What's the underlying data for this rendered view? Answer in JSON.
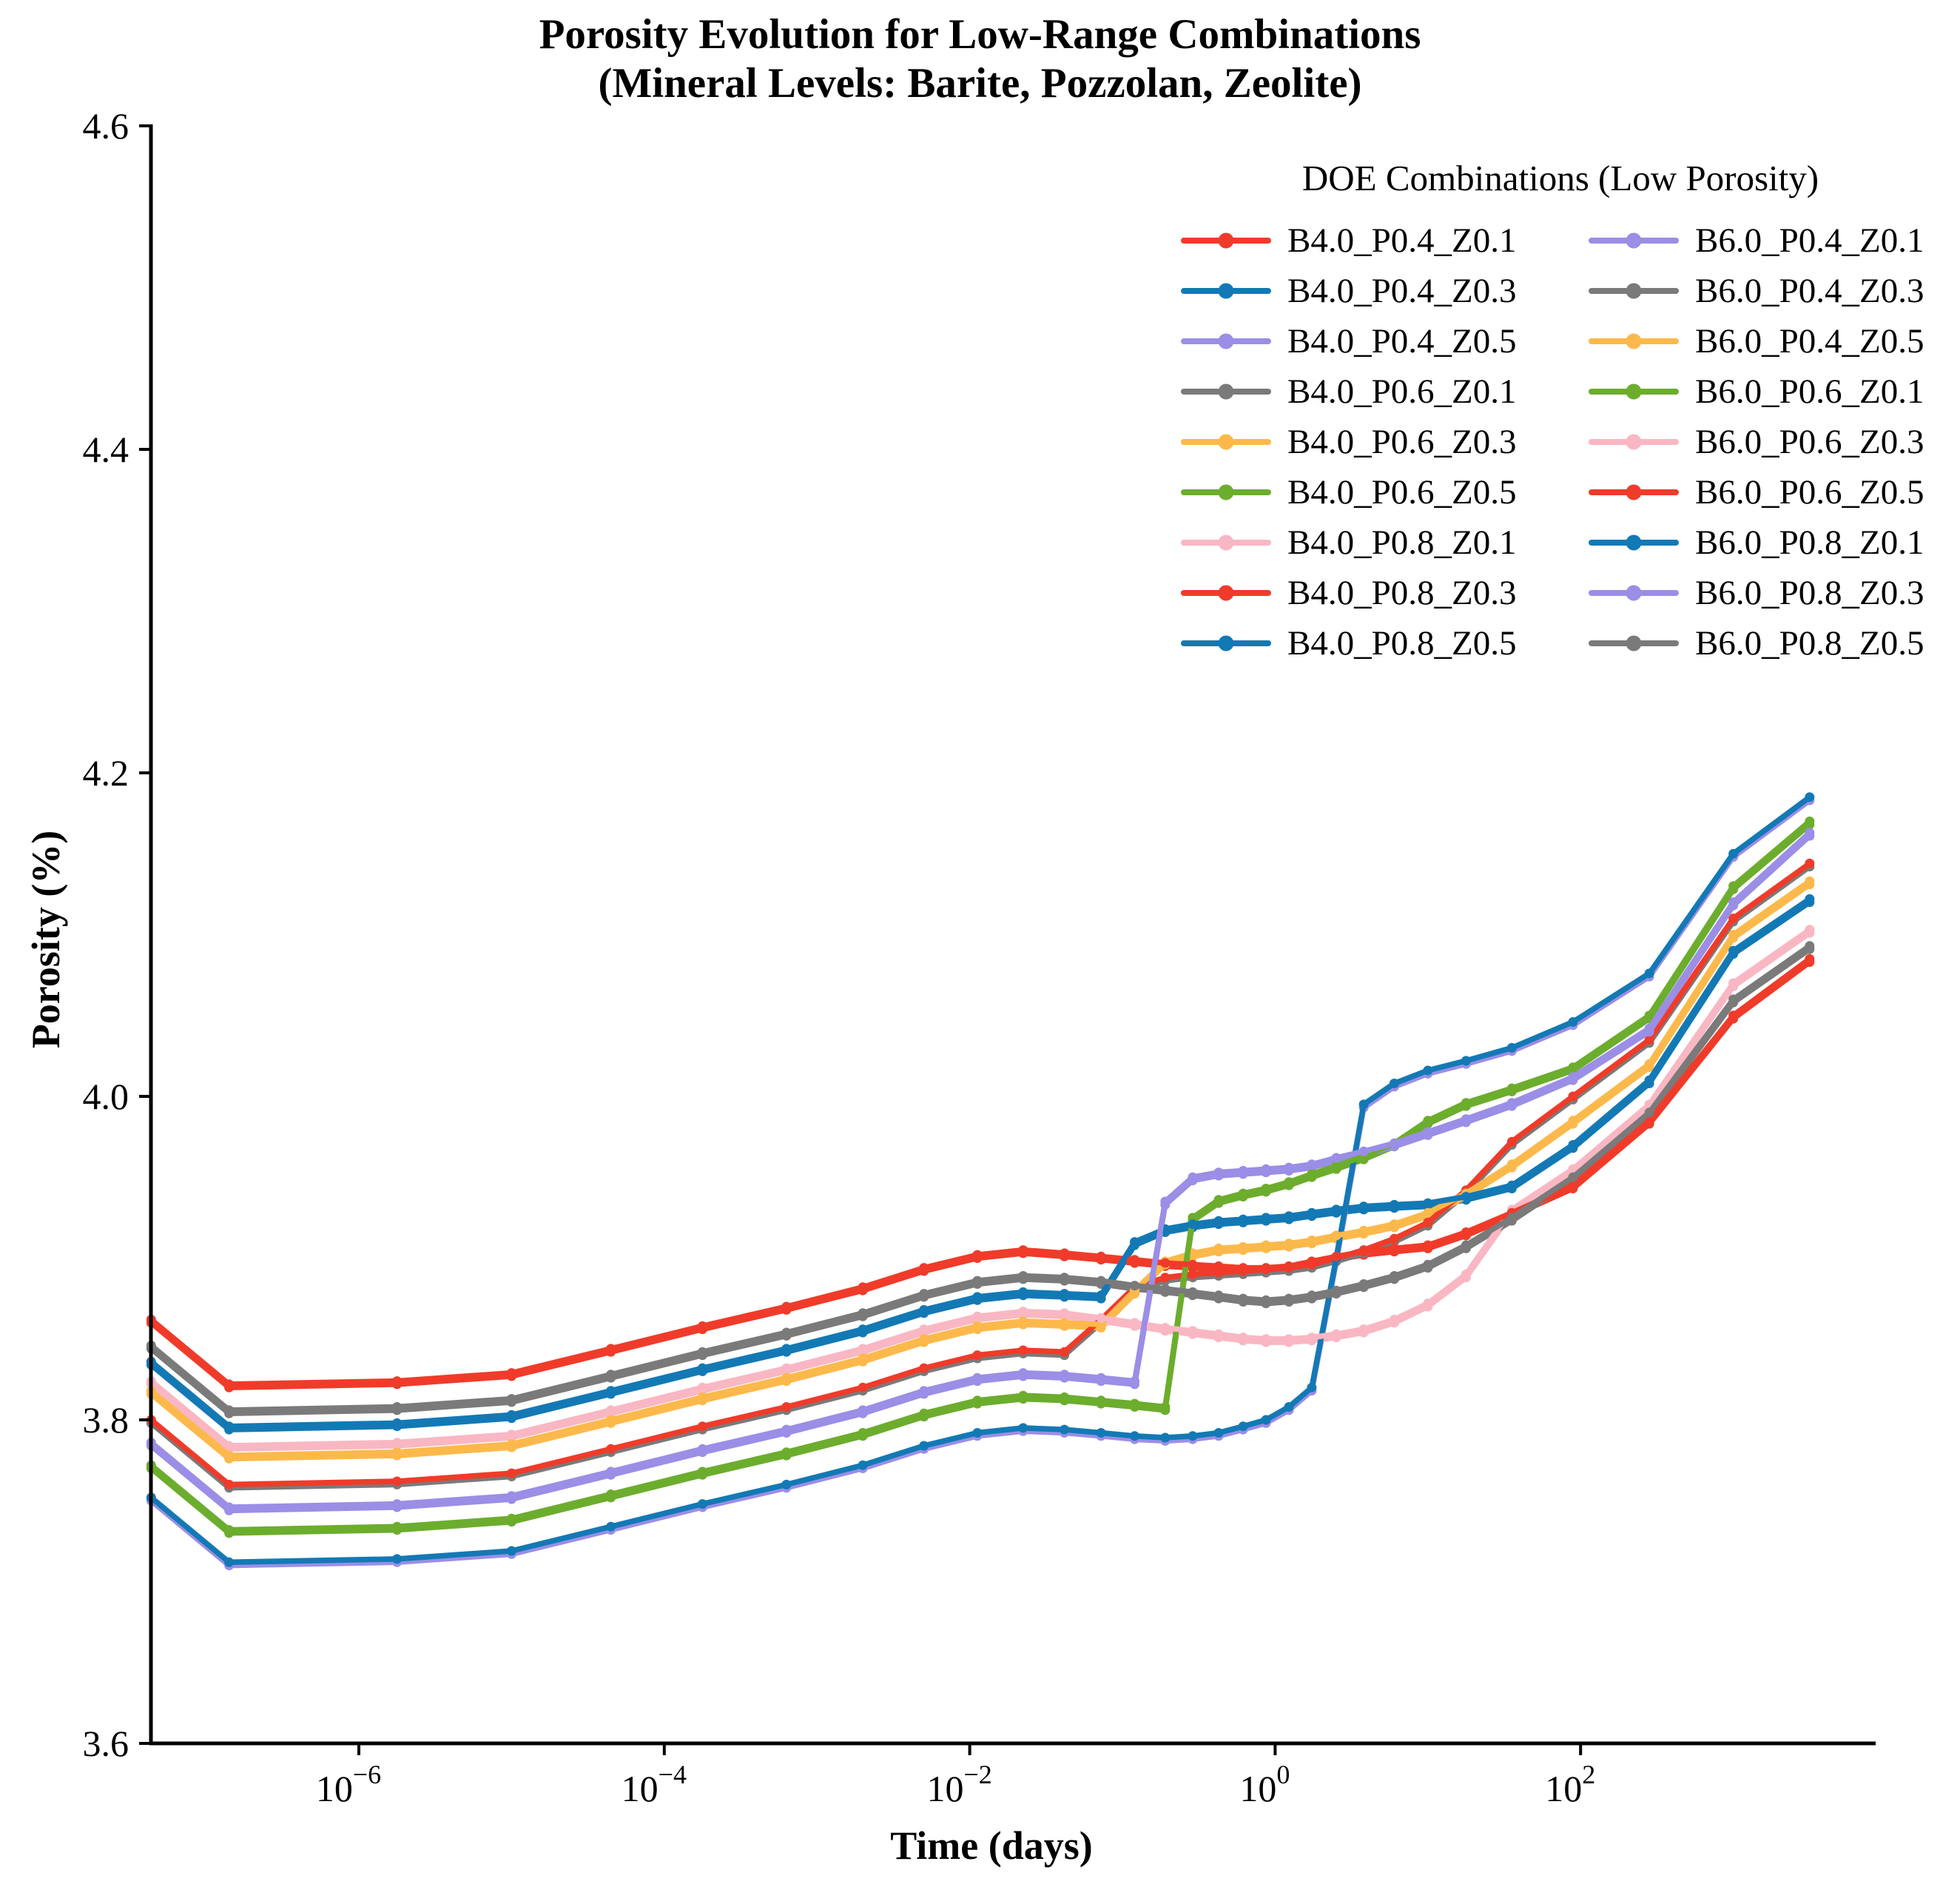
{
  "title_line1": "Porosity Evolution for Low-Range Combinations",
  "title_line2": "(Mineral Levels: Barite, Pozzolan, Zeolite)",
  "axes": {
    "x_label": "Time (days)",
    "y_label": "Porosity (%)",
    "y_tick_labels": [
      "4.6",
      "4.4",
      "4.2",
      "4.0",
      "3.8",
      "3.6"
    ],
    "y_tick_values": [
      4.6,
      4.4,
      4.2,
      4.0,
      3.8,
      3.6
    ],
    "x_tick_base": "10",
    "x_tick_exponents": [
      -6,
      -4,
      -2,
      0,
      2
    ]
  },
  "legend": {
    "title": "DOE Combinations (Low Porosity)"
  },
  "colors": {
    "red": "#f03b2a",
    "blue": "#1379b5",
    "purple": "#9a8ee6",
    "gray": "#7a7a7a",
    "orange": "#fcb94b",
    "green": "#6cad2d",
    "pink": "#f9b7c3",
    "axis": "#000000"
  },
  "chart_data": {
    "type": "line",
    "x_scale": "log",
    "grid": false,
    "legend_position": "upper right",
    "xlabel": "Time (days)",
    "ylabel": "Porosity (%)",
    "ylim": [
      3.6,
      4.6
    ],
    "xlim_log10": [
      -7.36,
      3.93
    ],
    "x_log10_days": [
      -7.36,
      -6.85,
      -5.75,
      -5.0,
      -4.35,
      -3.75,
      -3.2,
      -2.7,
      -2.3,
      -1.95,
      -1.65,
      -1.38,
      -1.14,
      -0.92,
      -0.72,
      -0.54,
      -0.37,
      -0.21,
      -0.06,
      0.09,
      0.24,
      0.4,
      0.58,
      0.78,
      1.0,
      1.25,
      1.55,
      1.95,
      2.45,
      3.0,
      3.5
    ],
    "series": [
      {
        "name": "B4.0_P0.4_Z0.1",
        "color_key": "red",
        "color": "#f03b2a",
        "values": [
          3.86,
          3.82,
          3.822,
          3.827,
          3.842,
          3.856,
          3.868,
          3.88,
          3.892,
          3.9,
          3.903,
          3.901,
          3.899,
          3.897,
          3.895,
          3.894,
          3.893,
          3.892,
          3.892,
          3.893,
          3.896,
          3.899,
          3.902,
          3.904,
          3.906,
          3.914,
          3.926,
          3.943,
          3.983,
          4.048,
          4.083
        ]
      },
      {
        "name": "B4.0_P0.4_Z0.3",
        "color_key": "blue",
        "color": "#1379b5",
        "values": [
          3.834,
          3.794,
          3.796,
          3.801,
          3.816,
          3.83,
          3.842,
          3.854,
          3.866,
          3.874,
          3.877,
          3.876,
          3.875,
          3.908,
          3.916,
          3.919,
          3.921,
          3.922,
          3.923,
          3.924,
          3.926,
          3.928,
          3.93,
          3.931,
          3.932,
          3.936,
          3.943,
          3.968,
          4.008,
          4.088,
          4.12
        ]
      },
      {
        "name": "B4.0_P0.4_Z0.5",
        "color_key": "purple",
        "color": "#9a8ee6",
        "values": [
          3.75,
          3.71,
          3.712,
          3.717,
          3.732,
          3.746,
          3.758,
          3.77,
          3.782,
          3.79,
          3.793,
          3.792,
          3.79,
          3.788,
          3.787,
          3.788,
          3.79,
          3.794,
          3.798,
          3.806,
          3.818,
          3.898,
          3.993,
          4.006,
          4.014,
          4.02,
          4.028,
          4.044,
          4.074,
          4.148,
          4.183
        ]
      },
      {
        "name": "B4.0_P0.6_Z0.1",
        "color_key": "gray",
        "color": "#7a7a7a",
        "values": [
          3.798,
          3.758,
          3.76,
          3.765,
          3.78,
          3.794,
          3.806,
          3.818,
          3.83,
          3.838,
          3.841,
          3.84,
          3.86,
          3.88,
          3.886,
          3.888,
          3.889,
          3.89,
          3.891,
          3.892,
          3.894,
          3.898,
          3.903,
          3.91,
          3.92,
          3.94,
          3.97,
          3.998,
          4.033,
          4.108,
          4.142
        ]
      },
      {
        "name": "B4.0_P0.6_Z0.3",
        "color_key": "orange",
        "color": "#fcb94b",
        "values": [
          3.816,
          3.776,
          3.778,
          3.783,
          3.798,
          3.812,
          3.824,
          3.836,
          3.848,
          3.856,
          3.859,
          3.858,
          3.857,
          3.878,
          3.896,
          3.901,
          3.904,
          3.905,
          3.906,
          3.907,
          3.909,
          3.912,
          3.915,
          3.919,
          3.926,
          3.938,
          3.956,
          3.983,
          4.018,
          4.098,
          4.131
        ]
      },
      {
        "name": "B4.0_P0.6_Z0.5",
        "color_key": "green",
        "color": "#6cad2d",
        "values": [
          3.77,
          3.73,
          3.732,
          3.737,
          3.752,
          3.766,
          3.778,
          3.79,
          3.802,
          3.81,
          3.813,
          3.812,
          3.81,
          3.808,
          3.806,
          3.923,
          3.934,
          3.938,
          3.941,
          3.945,
          3.95,
          3.955,
          3.961,
          3.969,
          3.983,
          3.994,
          4.003,
          4.016,
          4.048,
          4.128,
          4.168
        ]
      },
      {
        "name": "B4.0_P0.8_Z0.1",
        "color_key": "pink",
        "color": "#f9b7c3",
        "values": [
          3.822,
          3.782,
          3.784,
          3.789,
          3.804,
          3.818,
          3.83,
          3.842,
          3.854,
          3.862,
          3.865,
          3.864,
          3.861,
          3.858,
          3.855,
          3.853,
          3.851,
          3.849,
          3.848,
          3.848,
          3.849,
          3.851,
          3.854,
          3.86,
          3.87,
          3.888,
          3.928,
          3.953,
          3.993,
          4.068,
          4.101
        ]
      },
      {
        "name": "B4.0_P0.8_Z0.3",
        "color_key": "red",
        "color": "#f03b2a",
        "values": [
          3.8,
          3.76,
          3.762,
          3.767,
          3.782,
          3.796,
          3.808,
          3.82,
          3.832,
          3.84,
          3.843,
          3.842,
          3.862,
          3.882,
          3.888,
          3.89,
          3.891,
          3.892,
          3.893,
          3.894,
          3.896,
          3.9,
          3.905,
          3.912,
          3.922,
          3.942,
          3.972,
          4.0,
          4.035,
          4.11,
          4.144
        ]
      },
      {
        "name": "B4.0_P0.8_Z0.5",
        "color_key": "blue",
        "color": "#1379b5",
        "values": [
          3.752,
          3.712,
          3.714,
          3.719,
          3.734,
          3.748,
          3.76,
          3.772,
          3.784,
          3.792,
          3.795,
          3.794,
          3.792,
          3.79,
          3.789,
          3.79,
          3.792,
          3.796,
          3.8,
          3.808,
          3.82,
          3.9,
          3.995,
          4.008,
          4.016,
          4.022,
          4.03,
          4.046,
          4.076,
          4.15,
          4.185
        ]
      },
      {
        "name": "B6.0_P0.4_Z0.1",
        "color_key": "purple",
        "color": "#9a8ee6",
        "values": [
          3.784,
          3.744,
          3.746,
          3.751,
          3.766,
          3.78,
          3.792,
          3.804,
          3.816,
          3.824,
          3.827,
          3.826,
          3.824,
          3.822,
          3.933,
          3.948,
          3.951,
          3.952,
          3.953,
          3.954,
          3.956,
          3.96,
          3.964,
          3.969,
          3.976,
          3.984,
          3.994,
          4.01,
          4.04,
          4.118,
          4.161
        ]
      },
      {
        "name": "B6.0_P0.4_Z0.3",
        "color_key": "gray",
        "color": "#7a7a7a",
        "values": [
          3.844,
          3.804,
          3.806,
          3.811,
          3.826,
          3.84,
          3.852,
          3.864,
          3.876,
          3.884,
          3.887,
          3.886,
          3.884,
          3.881,
          3.879,
          3.877,
          3.875,
          3.873,
          3.872,
          3.873,
          3.875,
          3.878,
          3.882,
          3.887,
          3.894,
          3.906,
          3.923,
          3.948,
          3.988,
          4.058,
          4.091
        ]
      },
      {
        "name": "B6.0_P0.4_Z0.5",
        "color_key": "orange",
        "color": "#fcb94b",
        "values": [
          3.818,
          3.778,
          3.78,
          3.785,
          3.8,
          3.814,
          3.826,
          3.838,
          3.85,
          3.858,
          3.861,
          3.86,
          3.859,
          3.88,
          3.898,
          3.903,
          3.906,
          3.907,
          3.908,
          3.909,
          3.911,
          3.914,
          3.917,
          3.921,
          3.928,
          3.94,
          3.958,
          3.985,
          4.02,
          4.1,
          4.133
        ]
      },
      {
        "name": "B6.0_P0.6_Z0.1",
        "color_key": "green",
        "color": "#6cad2d",
        "values": [
          3.772,
          3.732,
          3.734,
          3.739,
          3.754,
          3.768,
          3.78,
          3.792,
          3.804,
          3.812,
          3.815,
          3.814,
          3.812,
          3.81,
          3.808,
          3.925,
          3.936,
          3.94,
          3.943,
          3.947,
          3.952,
          3.957,
          3.963,
          3.971,
          3.985,
          3.996,
          4.005,
          4.018,
          4.05,
          4.13,
          4.17
        ]
      },
      {
        "name": "B6.0_P0.6_Z0.3",
        "color_key": "pink",
        "color": "#f9b7c3",
        "values": [
          3.824,
          3.784,
          3.786,
          3.791,
          3.806,
          3.82,
          3.832,
          3.844,
          3.856,
          3.864,
          3.867,
          3.866,
          3.863,
          3.86,
          3.857,
          3.855,
          3.853,
          3.851,
          3.85,
          3.85,
          3.851,
          3.853,
          3.856,
          3.862,
          3.872,
          3.89,
          3.93,
          3.955,
          3.995,
          4.07,
          4.103
        ]
      },
      {
        "name": "B6.0_P0.6_Z0.5",
        "color_key": "red",
        "color": "#f03b2a",
        "values": [
          3.862,
          3.822,
          3.824,
          3.829,
          3.844,
          3.858,
          3.87,
          3.882,
          3.894,
          3.902,
          3.905,
          3.903,
          3.901,
          3.899,
          3.897,
          3.896,
          3.895,
          3.894,
          3.894,
          3.895,
          3.898,
          3.901,
          3.904,
          3.906,
          3.908,
          3.916,
          3.928,
          3.945,
          3.985,
          4.05,
          4.085
        ]
      },
      {
        "name": "B6.0_P0.8_Z0.1",
        "color_key": "blue",
        "color": "#1379b5",
        "values": [
          3.836,
          3.796,
          3.798,
          3.803,
          3.818,
          3.832,
          3.844,
          3.856,
          3.868,
          3.876,
          3.879,
          3.878,
          3.877,
          3.91,
          3.918,
          3.921,
          3.923,
          3.924,
          3.925,
          3.926,
          3.928,
          3.93,
          3.932,
          3.933,
          3.934,
          3.938,
          3.945,
          3.97,
          4.01,
          4.09,
          4.122
        ]
      },
      {
        "name": "B6.0_P0.8_Z0.3",
        "color_key": "purple",
        "color": "#9a8ee6",
        "values": [
          3.786,
          3.746,
          3.748,
          3.753,
          3.768,
          3.782,
          3.794,
          3.806,
          3.818,
          3.826,
          3.829,
          3.828,
          3.826,
          3.824,
          3.935,
          3.95,
          3.953,
          3.954,
          3.955,
          3.956,
          3.958,
          3.962,
          3.966,
          3.971,
          3.978,
          3.986,
          3.996,
          4.012,
          4.042,
          4.12,
          4.163
        ]
      },
      {
        "name": "B6.0_P0.8_Z0.5",
        "color_key": "gray",
        "color": "#7a7a7a",
        "values": [
          3.846,
          3.806,
          3.808,
          3.813,
          3.828,
          3.842,
          3.854,
          3.866,
          3.878,
          3.886,
          3.889,
          3.888,
          3.886,
          3.883,
          3.881,
          3.879,
          3.877,
          3.875,
          3.874,
          3.875,
          3.877,
          3.88,
          3.884,
          3.889,
          3.896,
          3.908,
          3.925,
          3.95,
          3.99,
          4.06,
          4.093
        ]
      }
    ]
  }
}
